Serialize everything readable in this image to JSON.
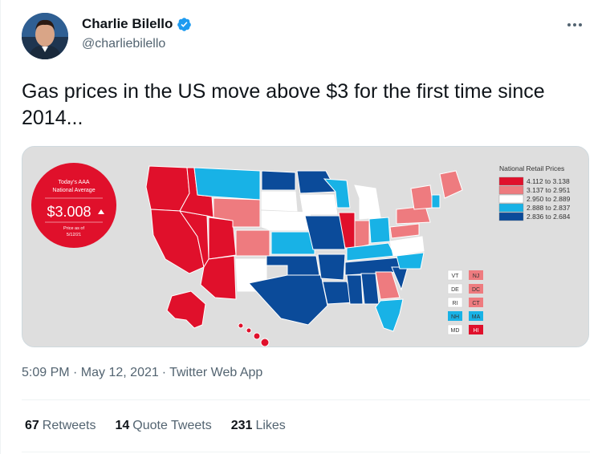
{
  "author": {
    "display_name": "Charlie Bilello",
    "handle": "@charliebilello",
    "verified_icon": "verified-badge-icon"
  },
  "tweet": {
    "text": "Gas prices in the US move above $3 for the first time since 2014...",
    "timestamp": "5:09 PM · May 12, 2021",
    "separator": "·",
    "source": "Twitter Web App"
  },
  "stats": {
    "retweets_count": "67",
    "retweets_label": "Retweets",
    "quote_count": "14",
    "quote_label": "Quote Tweets",
    "likes_count": "231",
    "likes_label": "Likes"
  },
  "map_image": {
    "badge": {
      "title_line1": "Today's AAA",
      "title_line2": "National Average",
      "price": "$3.008",
      "asof_line1": "Price as of",
      "asof_line2": "5/12/21"
    },
    "legend": {
      "title": "National Retail Prices",
      "entries": [
        {
          "label": "4.112 to 3.138",
          "color": "#e0102b"
        },
        {
          "label": "3.137 to 2.951",
          "color": "#ee7b7f"
        },
        {
          "label": "2.950 to 2.889",
          "color": "#ffffff"
        },
        {
          "label": "2.888 to 2.837",
          "color": "#18b2e6"
        },
        {
          "label": "2.836 to 2.684",
          "color": "#0b4b9a"
        }
      ]
    },
    "small_states": {
      "left": [
        "VT",
        "DE",
        "RI",
        "NH",
        "MD"
      ],
      "right": [
        "NJ",
        "DC",
        "CT",
        "MA",
        "HI"
      ]
    },
    "background": "#dedede"
  },
  "colors": {
    "accent": "#1d9bf0",
    "text_primary": "#0f1419",
    "text_secondary": "#536471"
  }
}
